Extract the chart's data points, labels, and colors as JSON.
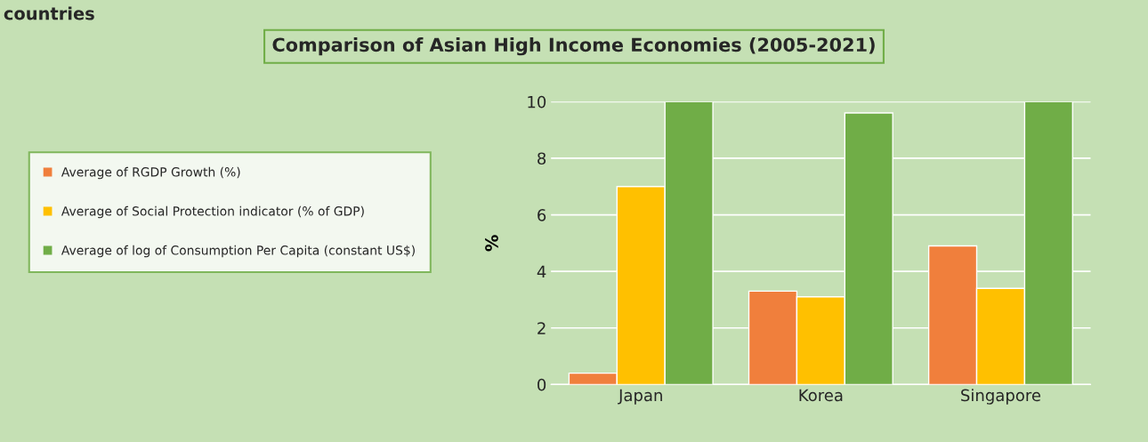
{
  "chart_data": {
    "type": "bar",
    "title": "Comparison of Asian High Income Economies (2005-2021)",
    "ylabel": "%",
    "categories": [
      "Japan",
      "Korea",
      "Singapore"
    ],
    "series": [
      {
        "name": "Average of RGDP Growth (%)",
        "color": "#f07f3c",
        "values": [
          0.4,
          3.3,
          4.9
        ]
      },
      {
        "name": "Average of Social Protection indicator (% of GDP)",
        "color": "#ffc000",
        "values": [
          7.0,
          3.1,
          3.4
        ]
      },
      {
        "name": "Average of log of Consumption Per Capita (constant US$)",
        "color": "#70ad47",
        "values": [
          10.0,
          9.6,
          10.0
        ]
      }
    ],
    "ylim": [
      0,
      10
    ],
    "yticks": [
      0,
      2,
      4,
      6,
      8,
      10
    ],
    "grid": "y",
    "legend": "left",
    "annotations": [
      "countries"
    ]
  }
}
